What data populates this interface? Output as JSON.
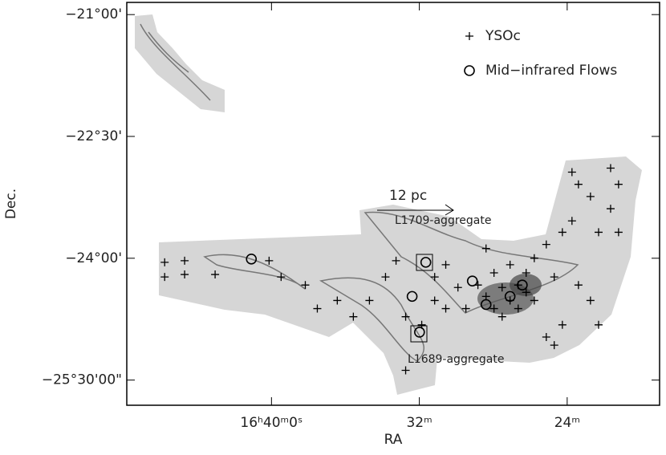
{
  "chart_data": {
    "type": "scatter",
    "xlabel": "RA",
    "ylabel": "Dec.",
    "xlim": [
      47.83,
      19
    ],
    "ylim": [
      -25.81,
      -20.85
    ],
    "xticks": [
      {
        "value": 40,
        "label": "16ʰ40ᵐ0ˢ"
      },
      {
        "value": 32,
        "label": "32ᵐ"
      },
      {
        "value": 24,
        "label": "24ᵐ"
      }
    ],
    "yticks": [
      {
        "value": -21,
        "label": "−21°00'"
      },
      {
        "value": -22.5,
        "label": "−22°30'"
      },
      {
        "value": -24,
        "label": "−24°00'"
      },
      {
        "value": -25.5,
        "label": "−25°30'00\""
      }
    ],
    "legend": "upper right",
    "annotations": [
      "12 pc",
      "L1709-aggregate",
      "L1689-aggregate"
    ],
    "series": [
      {
        "name": "YSOc",
        "marker": "+",
        "color": "#000000",
        "x": [
          45.78,
          44.7,
          45.78,
          44.7,
          43.05,
          40.13,
          39.48,
          38.17,
          37.52,
          36.44,
          35.57,
          34.7,
          33.83,
          33.26,
          32.74,
          32.74,
          31.87,
          31.17,
          31.17,
          30.57,
          30.57,
          29.91,
          29.48,
          28.83,
          28.39,
          28.39,
          27.96,
          27.96,
          27.52,
          27.52,
          27.09,
          27.09,
          26.65,
          26.65,
          26.22,
          26.22,
          25.78,
          25.78,
          25.13,
          25.13,
          24.7,
          24.7,
          24.26,
          23.74,
          23.74,
          23.39,
          23.39,
          22.74,
          22.74,
          22.3,
          22.3,
          21.65,
          21.65,
          21.22,
          21.22,
          24.26
        ],
        "y": [
          -24.05,
          -24.03,
          -24.23,
          -24.2,
          -24.2,
          -24.03,
          -24.23,
          -24.33,
          -24.62,
          -24.52,
          -24.72,
          -24.52,
          -24.23,
          -24.03,
          -24.72,
          -25.38,
          -24.82,
          -24.23,
          -24.52,
          -24.08,
          -24.62,
          -24.36,
          -24.62,
          -24.33,
          -24.47,
          -23.88,
          -24.62,
          -24.18,
          -24.36,
          -24.72,
          -24.52,
          -24.08,
          -24.33,
          -24.62,
          -24.42,
          -24.18,
          -24.52,
          -24.0,
          -24.97,
          -23.83,
          -25.07,
          -24.23,
          -23.68,
          -22.94,
          -23.54,
          -23.09,
          -24.33,
          -23.24,
          -24.52,
          -24.82,
          -23.68,
          -22.89,
          -23.39,
          -23.68,
          -23.09,
          -24.82
        ]
      },
      {
        "name": "Mid−infrared Flows",
        "marker": "o",
        "color": "#000000",
        "x": [
          41.09,
          31.65,
          32.39,
          29.13,
          31.99,
          28.39,
          27.09,
          26.43
        ],
        "y": [
          -24.01,
          -24.05,
          -24.47,
          -24.28,
          -24.91,
          -24.57,
          -24.47,
          -24.33
        ]
      }
    ]
  }
}
